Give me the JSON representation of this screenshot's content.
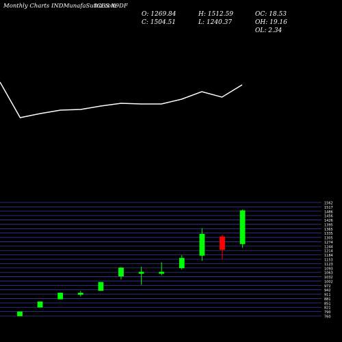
{
  "header": {
    "site": "Monthly Charts INDMunafaSutra.com",
    "symbol": "ICES X9DF"
  },
  "ohlc": {
    "open": "O: 1269.84",
    "high": "H: 1512.59",
    "oc": "OC: 18.53",
    "close": "C: 1504.51",
    "low": "L: 1240.37",
    "oh": "OH: 19.16",
    "ol": "OL: 2.34"
  },
  "colors": {
    "background": "#000000",
    "up": "#00ff00",
    "down": "#ff0000",
    "grid": "#3a3a9a",
    "line": "#ffffff",
    "label": "#ffffff"
  },
  "chart_data": {
    "type": "candlestick",
    "y_ticks": [
      1562,
      1517,
      1486,
      1456,
      1426,
      1395,
      1365,
      1335,
      1305,
      1274,
      1244,
      1214,
      1184,
      1153,
      1123,
      1093,
      1063,
      1032,
      1002,
      972,
      942,
      911,
      881,
      851,
      821,
      790,
      760
    ],
    "ylim": [
      760,
      1562
    ],
    "candles": [
      {
        "open": 760,
        "high": 792,
        "low": 758,
        "close": 790
      },
      {
        "open": 822,
        "high": 862,
        "low": 820,
        "close": 860
      },
      {
        "open": 880,
        "high": 926,
        "low": 878,
        "close": 922
      },
      {
        "open": 916,
        "high": 937,
        "low": 898,
        "close": 922
      },
      {
        "open": 940,
        "high": 1000,
        "low": 938,
        "close": 998
      },
      {
        "open": 1042,
        "high": 1105,
        "low": 1018,
        "close": 1100
      },
      {
        "open": 1062,
        "high": 1108,
        "low": 980,
        "close": 1070
      },
      {
        "open": 1068,
        "high": 1140,
        "low": 1048,
        "close": 1070
      },
      {
        "open": 1100,
        "high": 1190,
        "low": 1088,
        "close": 1168
      },
      {
        "open": 1188,
        "high": 1380,
        "low": 1150,
        "close": 1338
      },
      {
        "open": 1320,
        "high": 1335,
        "low": 1160,
        "close": 1230
      },
      {
        "open": 1269.84,
        "high": 1512.59,
        "low": 1240.37,
        "close": 1504.51
      }
    ],
    "line_series": [
      120,
      172,
      166,
      161,
      160,
      155,
      151,
      152,
      152,
      145,
      134,
      142,
      124
    ]
  }
}
